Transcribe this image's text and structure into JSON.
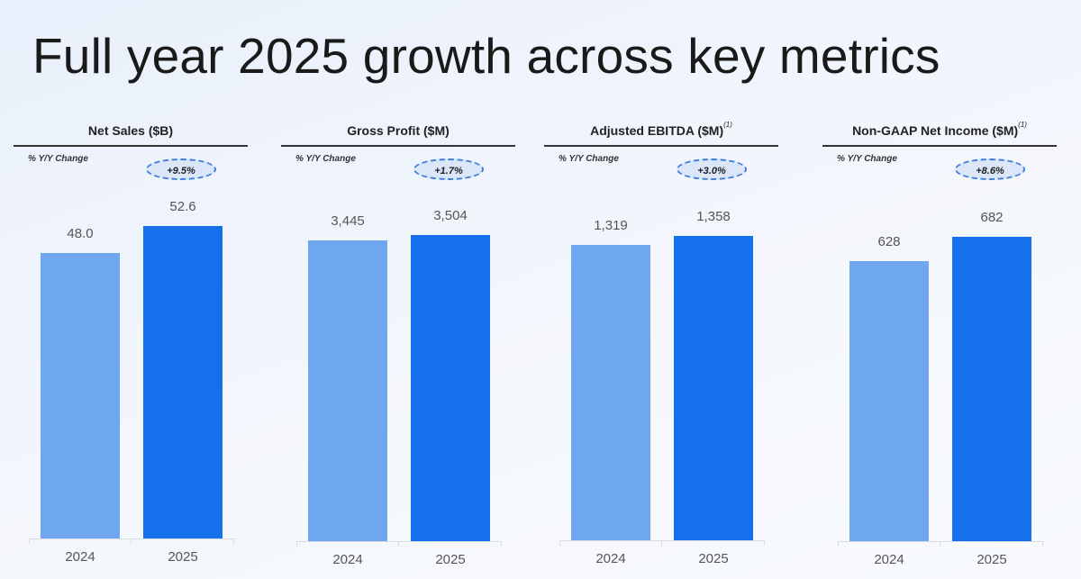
{
  "title": "Full year 2025 growth across key metrics",
  "colors": {
    "y2024": "#6fa6f0",
    "y2025": "#1570ec",
    "badge_border": "#3d7fd6"
  },
  "yy_label": "% Y/Y Change",
  "chart_data": [
    {
      "type": "bar",
      "title": "Net Sales ($B)",
      "footnote": "",
      "categories": [
        "2024",
        "2025"
      ],
      "values": [
        48.0,
        52.6
      ],
      "labels": [
        "48.0",
        "52.6"
      ],
      "change": "+9.5%",
      "ylim": [
        0,
        52.6
      ]
    },
    {
      "type": "bar",
      "title": "Gross Profit ($M)",
      "footnote": "",
      "categories": [
        "2024",
        "2025"
      ],
      "values": [
        3445,
        3504
      ],
      "labels": [
        "3,445",
        "3,504"
      ],
      "change": "+1.7%",
      "ylim": [
        0,
        3504
      ]
    },
    {
      "type": "bar",
      "title": "Adjusted EBITDA ($M)",
      "footnote": "(1)",
      "categories": [
        "2024",
        "2025"
      ],
      "values": [
        1319,
        1358
      ],
      "labels": [
        "1,319",
        "1,358"
      ],
      "change": "+3.0%",
      "ylim": [
        0,
        1358
      ]
    },
    {
      "type": "bar",
      "title": "Non-GAAP Net Income ($M)",
      "footnote": "(1)",
      "categories": [
        "2024",
        "2025"
      ],
      "values": [
        628,
        682
      ],
      "labels": [
        "628",
        "682"
      ],
      "change": "+8.6%",
      "ylim": [
        0,
        682
      ]
    }
  ]
}
